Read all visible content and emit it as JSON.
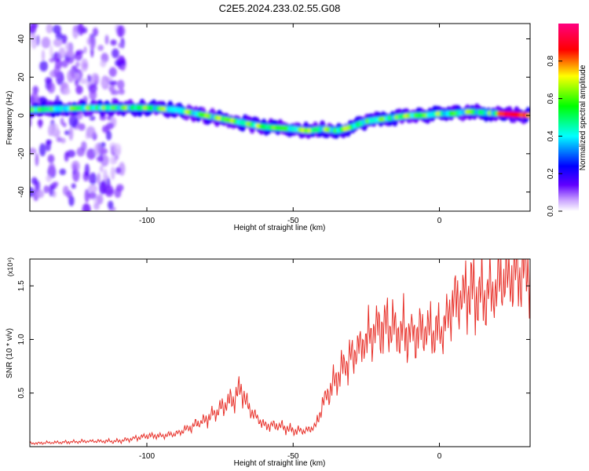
{
  "title": "C2E5.2024.233.02.55.G08",
  "chart_data": [
    {
      "type": "heatmap",
      "xlabel": "Height of straight line (km)",
      "ylabel": "Frequency (Hz)",
      "xlim": [
        -140,
        31
      ],
      "ylim": [
        -50,
        48
      ],
      "xticks": [
        -100,
        -50,
        0
      ],
      "yticks": [
        -40,
        -20,
        0,
        20,
        40
      ],
      "colorbar": {
        "label": "Normalized spectral amplitude",
        "range": [
          0,
          1
        ],
        "ticks": [
          "0.0",
          "0.2",
          "0.4",
          "0.6",
          "0.8"
        ],
        "colormap": [
          "#ffffff",
          "#c8a0ff",
          "#6000ff",
          "#0000ff",
          "#00ffff",
          "#00ff00",
          "#ffff00",
          "#ff0000",
          "#ff0080"
        ]
      },
      "ridge": {
        "x": [
          -140,
          -120,
          -100,
          -90,
          -80,
          -70,
          -60,
          -50,
          -45,
          -40,
          -35,
          -30,
          -25,
          -20,
          -15,
          -10,
          -5,
          0,
          5,
          10,
          20,
          31
        ],
        "y": [
          3,
          4,
          4,
          3,
          0,
          -3,
          -6,
          -7,
          -8,
          -7,
          -8,
          -6,
          -3,
          -2,
          -1,
          0,
          0,
          1,
          1,
          2,
          1,
          0
        ]
      }
    },
    {
      "type": "line",
      "xlabel": "Height of straight line (km)",
      "ylabel": "SNR (10 * v/v)",
      "y_multiplier": "(x10⁴)",
      "xlim": [
        -140,
        31
      ],
      "ylim": [
        0,
        1.75
      ],
      "xticks": [
        -100,
        -50,
        0
      ],
      "yticks": [
        "0.5",
        "1.0",
        "1.5"
      ],
      "line_color": "#e8312a",
      "series": [
        {
          "x": [
            -140,
            -130,
            -120,
            -110,
            -100,
            -95,
            -90,
            -85,
            -80,
            -75,
            -70,
            -68,
            -65,
            -60,
            -55,
            -50,
            -45,
            -42,
            -40,
            -38,
            -35,
            -30,
            -25,
            -20,
            -15,
            -10,
            -5,
            0,
            5,
            10,
            15,
            20,
            25,
            31
          ],
          "y": [
            0.03,
            0.04,
            0.05,
            0.05,
            0.1,
            0.1,
            0.12,
            0.18,
            0.25,
            0.35,
            0.45,
            0.55,
            0.35,
            0.2,
            0.2,
            0.15,
            0.15,
            0.2,
            0.4,
            0.5,
            0.65,
            0.85,
            1.0,
            1.15,
            1.1,
            1.05,
            1.1,
            1.05,
            1.35,
            1.45,
            1.4,
            1.5,
            1.6,
            1.65
          ]
        }
      ]
    }
  ]
}
